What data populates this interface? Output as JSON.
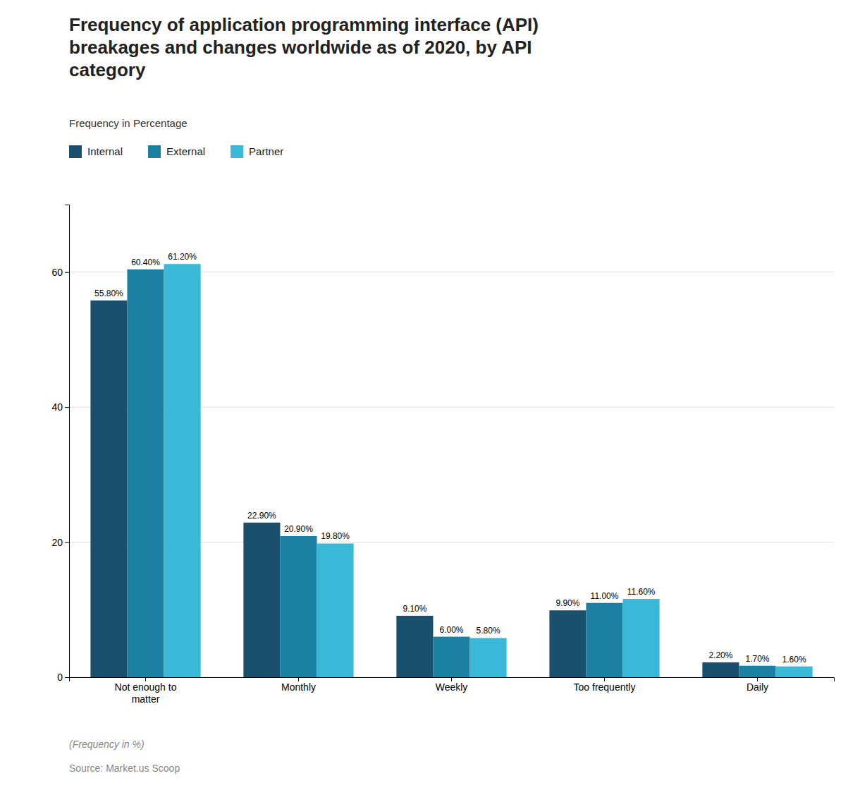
{
  "chart_data": {
    "type": "bar",
    "title": "Frequency of application programming interface (API)\nbreakages and changes worldwide as of 2020, by API\ncategory",
    "subtitle": "Frequency in Percentage",
    "categories": [
      "Not enough to\nmatter",
      "Monthly",
      "Weekly",
      "Too frequently",
      "Daily"
    ],
    "series": [
      {
        "name": "Internal",
        "color": "#1a4f6e",
        "values": [
          55.8,
          22.9,
          9.1,
          9.9,
          2.2
        ],
        "value_labels": [
          "55.80%",
          "22.90%",
          "9.10%",
          "9.90%",
          "2.20%"
        ]
      },
      {
        "name": "External",
        "color": "#1a7fa0",
        "values": [
          60.4,
          20.9,
          6.0,
          11.0,
          1.7
        ],
        "value_labels": [
          "60.40%",
          "20.90%",
          "6.00%",
          "11.00%",
          "1.70%"
        ]
      },
      {
        "name": "Partner",
        "color": "#3ab8d8",
        "values": [
          61.2,
          19.8,
          5.8,
          11.6,
          1.6
        ],
        "value_labels": [
          "61.20%",
          "19.80%",
          "5.80%",
          "11.60%",
          "1.60%"
        ]
      }
    ],
    "ylim": [
      0,
      70
    ],
    "yticks": [
      0,
      20,
      40,
      60
    ],
    "grid": true,
    "legend": "top-left",
    "data_labels": true,
    "annotations": [
      "(Frequency in %)",
      "Source: Market.us Scoop"
    ]
  }
}
